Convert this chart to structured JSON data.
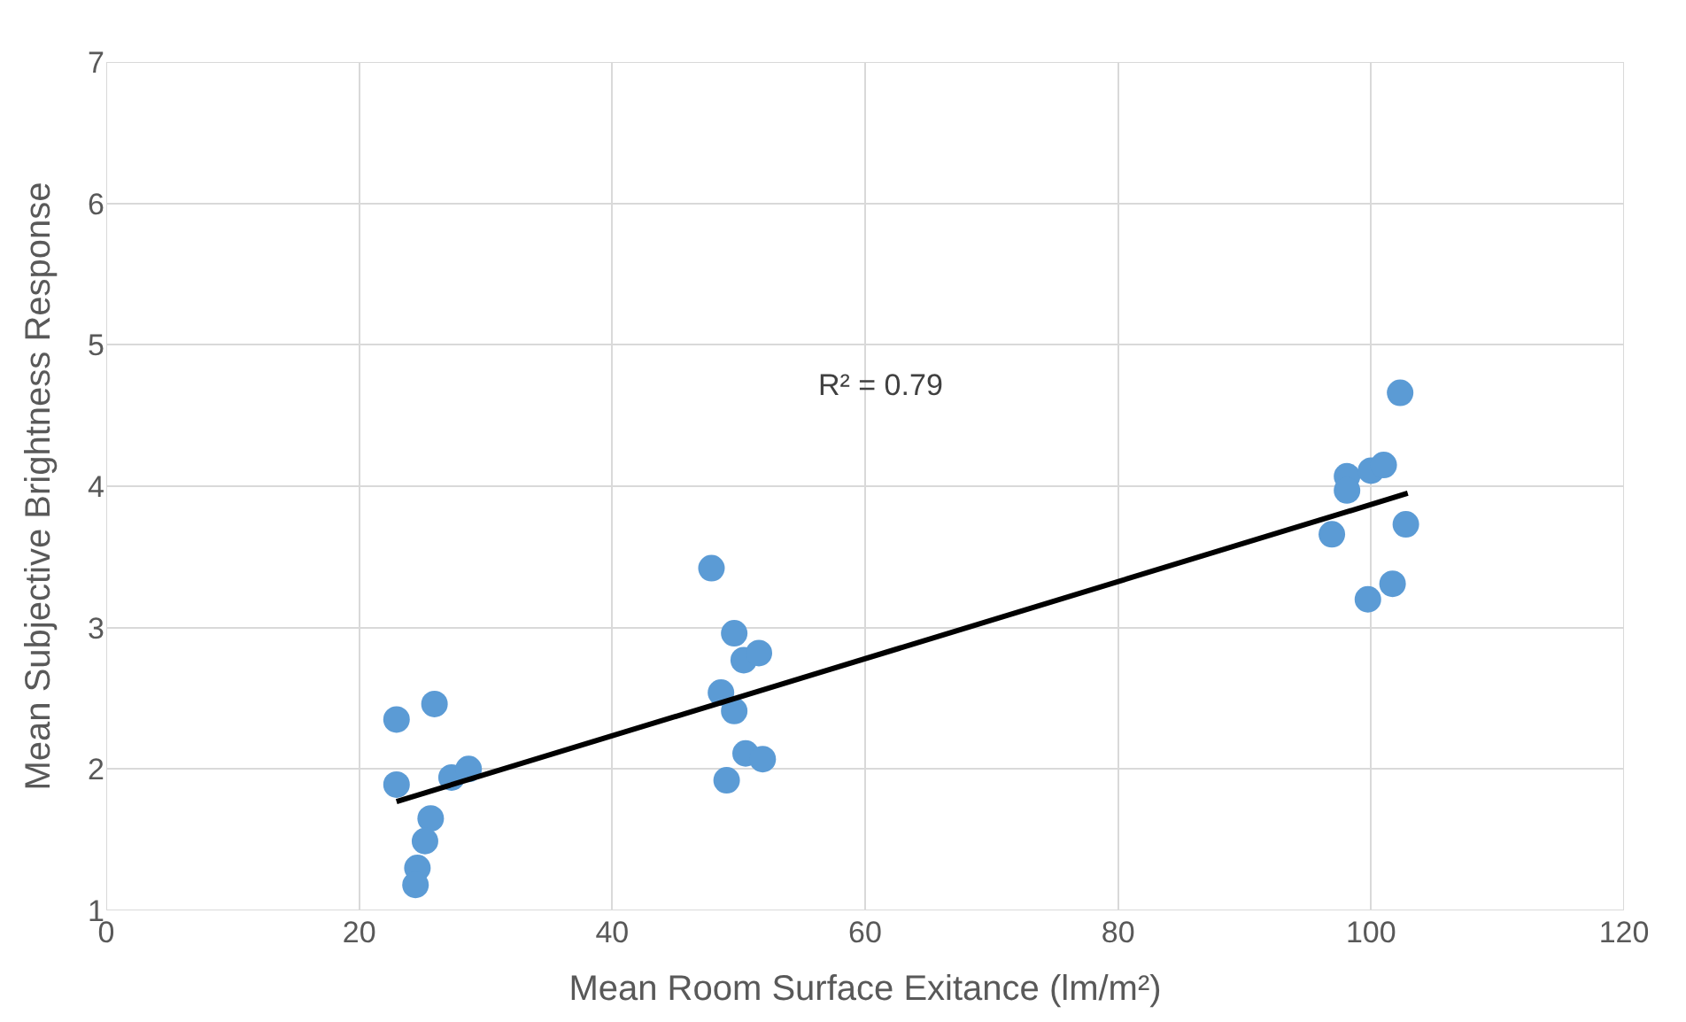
{
  "chart_data": {
    "type": "scatter",
    "xlabel": "Mean Room Surface Exitance (lm/m²)",
    "ylabel": "Mean Subjective Brightness Response",
    "xlim": [
      0,
      120
    ],
    "xticks": [
      0,
      20,
      40,
      60,
      80,
      100,
      120
    ],
    "ylim": [
      1,
      7
    ],
    "yticks": [
      1,
      2,
      3,
      4,
      5,
      6,
      7
    ],
    "grid": true,
    "marker": "circle",
    "annotations": [
      "R² = 0.79"
    ],
    "series": [
      {
        "color": "#5b9bd5",
        "x": [
          22.95,
          25.95,
          22.95,
          27.3,
          28.65,
          25.65,
          25.2,
          24.6,
          24.45,
          47.85,
          49.65,
          50.4,
          51.6,
          48.6,
          49.65,
          50.55,
          51.9,
          49.05,
          102.3,
          98.1,
          100.0,
          101.0,
          98.1,
          96.9,
          102.75,
          101.7,
          99.75
        ],
        "values": [
          2.35,
          2.46,
          1.89,
          1.94,
          2.0,
          1.65,
          1.49,
          1.3,
          1.18,
          3.42,
          2.96,
          2.77,
          2.82,
          2.54,
          2.41,
          2.11,
          2.07,
          1.92,
          4.66,
          4.07,
          4.11,
          4.15,
          3.97,
          3.66,
          3.73,
          3.31,
          3.2
        ]
      },
      {
        "type": "line",
        "color": "#000000",
        "marker": "none",
        "line_style": "solid",
        "x": [
          22.95,
          102.9
        ],
        "values": [
          1.77,
          3.95
        ]
      }
    ]
  }
}
